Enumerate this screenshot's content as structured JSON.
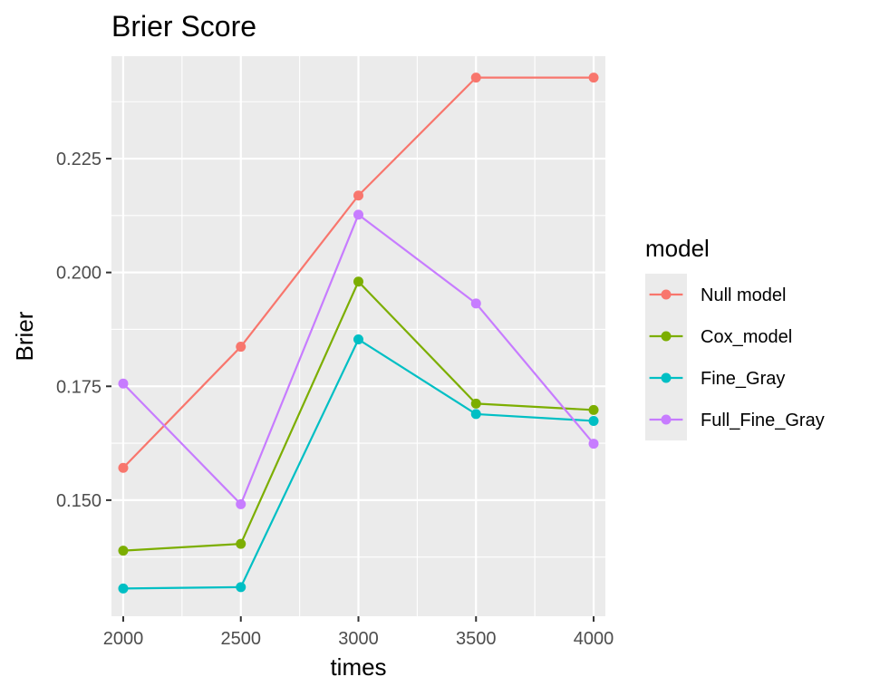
{
  "chart_data": {
    "type": "line",
    "title": "Brier Score",
    "xlabel": "times",
    "ylabel": "Brier",
    "x": [
      2000,
      2500,
      3000,
      3500,
      4000
    ],
    "xlim": [
      1950,
      4050
    ],
    "ylim": [
      0.1245,
      0.2475
    ],
    "x_ticks": [
      2000,
      2500,
      3000,
      3500,
      4000
    ],
    "x_tick_labels": [
      "2000",
      "2500",
      "3000",
      "3500",
      "4000"
    ],
    "y_ticks": [
      0.15,
      0.175,
      0.2,
      0.225
    ],
    "y_tick_labels": [
      "0.150",
      "0.175",
      "0.200",
      "0.225"
    ],
    "grid": true,
    "legend": {
      "title": "model",
      "placement": "right"
    },
    "series": [
      {
        "name": "Null model",
        "color": "#F8766D",
        "values": [
          0.1571,
          0.1837,
          0.2169,
          0.2428,
          0.2428
        ]
      },
      {
        "name": "Cox_model",
        "color": "#7CAE00",
        "values": [
          0.1389,
          0.1404,
          0.198,
          0.1712,
          0.1698
        ]
      },
      {
        "name": "Fine_Gray",
        "color": "#00BFC4",
        "values": [
          0.1306,
          0.1309,
          0.1853,
          0.1689,
          0.1674
        ]
      },
      {
        "name": "Full_Fine_Gray",
        "color": "#C77CFF",
        "values": [
          0.1756,
          0.1491,
          0.2127,
          0.1932,
          0.1624
        ]
      }
    ],
    "panel_background": "#EBEBEB",
    "grid_color": "#FFFFFF"
  }
}
